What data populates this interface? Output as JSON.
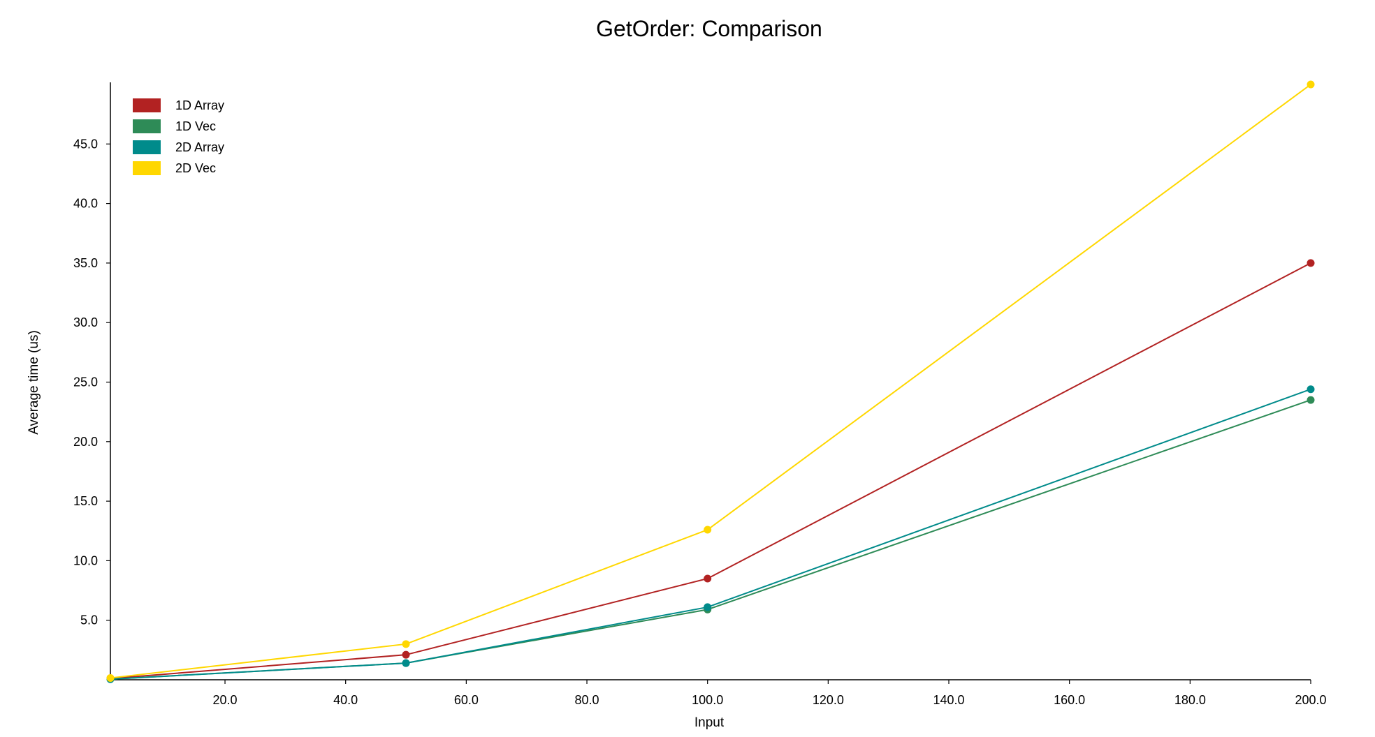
{
  "chart_data": {
    "type": "line",
    "title": "GetOrder: Comparison",
    "xlabel": "Input",
    "ylabel": "Average time (us)",
    "xlim": [
      1,
      200
    ],
    "ylim": [
      0,
      50
    ],
    "xticks": [
      20,
      40,
      60,
      80,
      100,
      120,
      140,
      160,
      180,
      200
    ],
    "xtick_labels": [
      "20.0",
      "40.0",
      "60.0",
      "80.0",
      "100.0",
      "120.0",
      "140.0",
      "160.0",
      "180.0",
      "200.0"
    ],
    "yticks": [
      5,
      10,
      15,
      20,
      25,
      30,
      35,
      40,
      45
    ],
    "ytick_labels": [
      "5.0",
      "10.0",
      "15.0",
      "20.0",
      "25.0",
      "30.0",
      "35.0",
      "40.0",
      "45.0"
    ],
    "grid": false,
    "legend_position": "top-left",
    "x": [
      1,
      50,
      100,
      200
    ],
    "series": [
      {
        "name": "1D Array",
        "color": "#b22222",
        "values": [
          0.1,
          2.1,
          8.5,
          35.0
        ]
      },
      {
        "name": "1D Vec",
        "color": "#2e8b57",
        "values": [
          0.05,
          1.4,
          5.9,
          23.5
        ]
      },
      {
        "name": "2D Array",
        "color": "#008b8b",
        "values": [
          0.05,
          1.4,
          6.1,
          24.4
        ]
      },
      {
        "name": "2D Vec",
        "color": "#ffd700",
        "values": [
          0.15,
          3.0,
          12.6,
          50.0
        ]
      }
    ]
  }
}
